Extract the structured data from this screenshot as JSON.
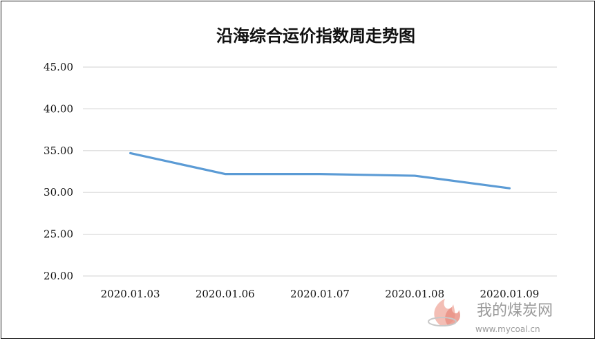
{
  "chart_data": {
    "type": "line",
    "title": "沿海综合运价指数周走势图",
    "categories": [
      "2020.01.03",
      "2020.01.06",
      "2020.01.07",
      "2020.01.08",
      "2020.01.09"
    ],
    "series": [
      {
        "values": [
          34.7,
          32.2,
          32.2,
          32.0,
          30.5
        ],
        "color": "#5b9bd5"
      }
    ],
    "y_ticks": [
      "45.00",
      "40.00",
      "35.00",
      "30.00",
      "25.00",
      "20.00"
    ],
    "ylim": [
      20,
      45
    ],
    "grid": true,
    "legend": "none"
  },
  "watermark": {
    "text": "我的煤炭网",
    "url": "www.mycoal.cn",
    "icon": "flame-logo-icon"
  }
}
